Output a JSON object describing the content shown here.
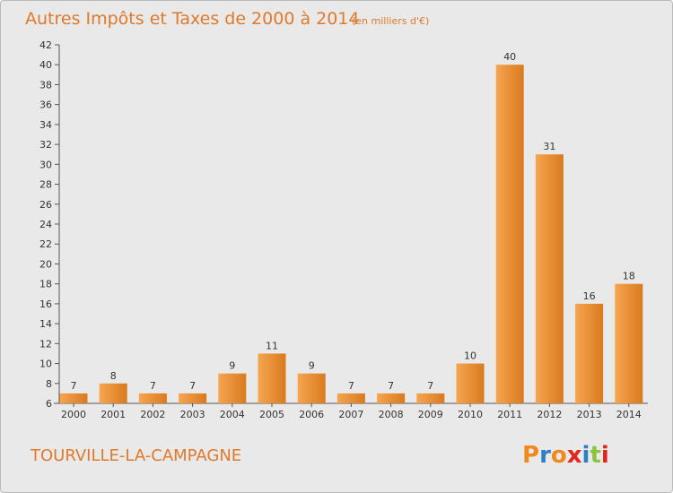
{
  "chart_data": {
    "type": "bar",
    "title": "Autres Impôts et Taxes de 2000 à 2014",
    "unit_label": "(en milliers d'€)",
    "xlabel": "",
    "ylabel": "",
    "categories": [
      "2000",
      "2001",
      "2002",
      "2003",
      "2004",
      "2005",
      "2006",
      "2007",
      "2008",
      "2009",
      "2010",
      "2011",
      "2012",
      "2013",
      "2014"
    ],
    "values": [
      7,
      8,
      7,
      7,
      9,
      11,
      9,
      7,
      7,
      7,
      10,
      40,
      31,
      16,
      18
    ],
    "ylim": [
      6,
      42
    ],
    "yticks": [
      6,
      8,
      10,
      12,
      14,
      16,
      18,
      20,
      22,
      24,
      26,
      28,
      30,
      32,
      34,
      36,
      38,
      40,
      42
    ],
    "grid": false,
    "legend": "none",
    "colors": {
      "bar_light": "#f6a550",
      "bar_dark": "#d97a1f",
      "title": "#e07a2a",
      "background": "#e9e9e9"
    }
  },
  "footer": {
    "place_name": "TOURVILLE-LA-CAMPAGNE",
    "brand_letters": [
      "P",
      "r",
      "o",
      "x",
      "i",
      "t",
      "i"
    ],
    "brand_colors": [
      "#f08a1e",
      "#2d7fc1",
      "#f08a1e",
      "#e4251b",
      "#2d7fc1",
      "#8cc43f",
      "#e4251b"
    ]
  }
}
